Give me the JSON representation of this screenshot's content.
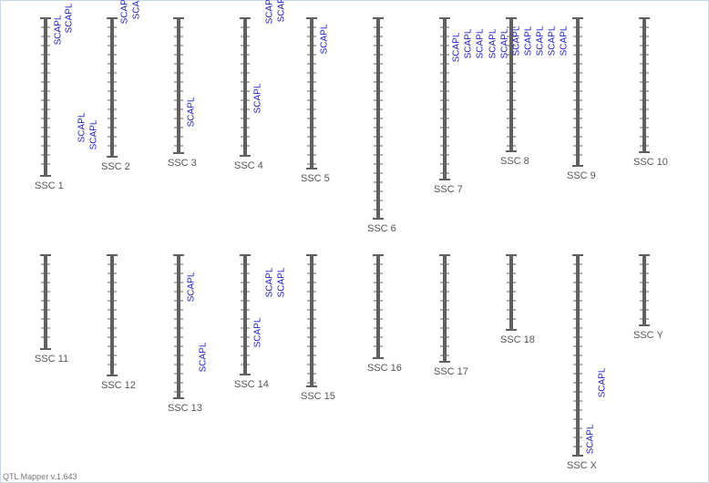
{
  "chromosomes": [
    {
      "label": "SSC 1",
      "qtls": [
        "SCAPL",
        "SCAPL",
        "SCAPL",
        "SCAPL"
      ]
    },
    {
      "label": "SSC 2",
      "qtls": [
        "SCAPL",
        "SCAPL"
      ]
    },
    {
      "label": "SSC 3",
      "qtls": [
        "SCAPL"
      ]
    },
    {
      "label": "SSC 4",
      "qtls": [
        "SCAPL",
        "SCAPL",
        "SCAPL"
      ]
    },
    {
      "label": "SSC 5",
      "qtls": [
        "SCAPL"
      ]
    },
    {
      "label": "SSC 6",
      "qtls": []
    },
    {
      "label": "SSC 7",
      "qtls": [
        "SCAPL",
        "SCAPL",
        "SCAPL",
        "SCAPL",
        "SCAPL"
      ]
    },
    {
      "label": "SSC 8",
      "qtls": [
        "SCAPL",
        "SCAPL",
        "SCAPL",
        "SCAPL",
        "SCAPL"
      ]
    },
    {
      "label": "SSC 9",
      "qtls": []
    },
    {
      "label": "SSC 10",
      "qtls": []
    },
    {
      "label": "SSC 11",
      "qtls": []
    },
    {
      "label": "SSC 12",
      "qtls": []
    },
    {
      "label": "SSC 13",
      "qtls": [
        "SCAPL",
        "SCAPL"
      ]
    },
    {
      "label": "SSC 14",
      "qtls": [
        "SCAPL",
        "SCAPL",
        "SCAPL"
      ]
    },
    {
      "label": "SSC 15",
      "qtls": []
    },
    {
      "label": "SSC 16",
      "qtls": []
    },
    {
      "label": "SSC 17",
      "qtls": []
    },
    {
      "label": "SSC 18",
      "qtls": []
    },
    {
      "label": "SSC X",
      "qtls": [
        "SCAPL",
        "SCAPL"
      ]
    },
    {
      "label": "SSC Y",
      "qtls": []
    }
  ],
  "footer": "QTL Mapper v.1.643"
}
